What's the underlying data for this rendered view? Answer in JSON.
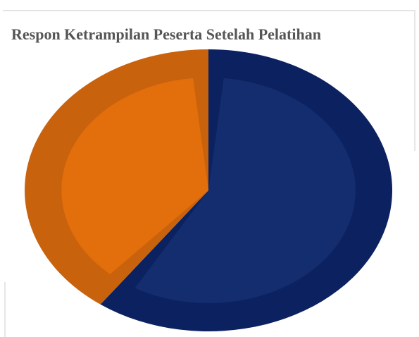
{
  "chart_data": {
    "type": "pie",
    "title": "Respon Ketrampilan Peserta Setelah Pelatihan",
    "slices": [
      {
        "label": "",
        "value": 60,
        "color": "#0c2260",
        "inner_color": "#132d6e"
      },
      {
        "label": "",
        "value": 40,
        "color": "#c9620d",
        "inner_color": "#e26e0c"
      }
    ],
    "start_angle_deg": 0,
    "legend": "none"
  }
}
